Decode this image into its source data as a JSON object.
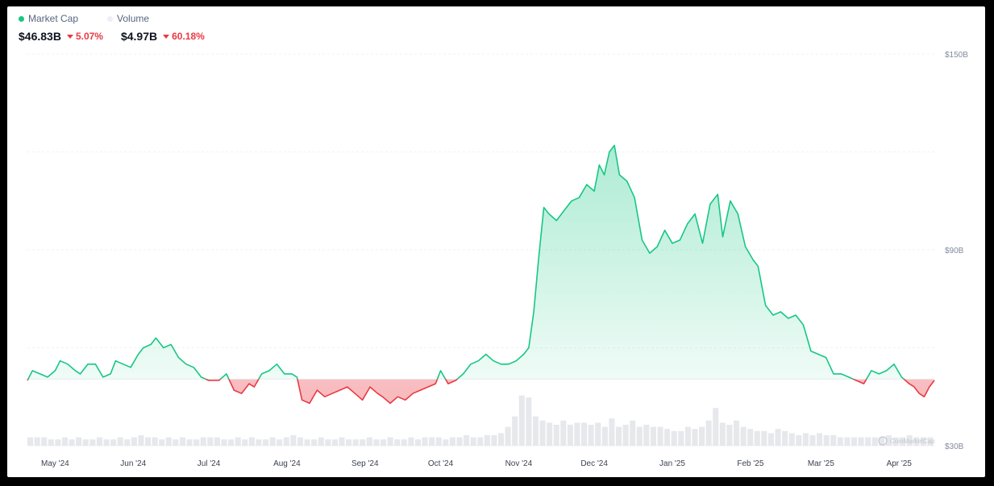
{
  "legend": {
    "market_cap_label": "Market Cap",
    "volume_label": "Volume",
    "market_cap_color": "#16c784",
    "volume_color": "#eceff3"
  },
  "stats": {
    "market_cap_value": "$46.83B",
    "market_cap_change": "5.07%",
    "volume_value": "$4.97B",
    "volume_change": "60.18%"
  },
  "watermark": "CoinMarketCap",
  "colors": {
    "up": "#16c784",
    "down": "#ea3943",
    "grid": "#eff2f5",
    "axis_text": "#808a9d",
    "volume": "#e6e8ec"
  },
  "chart_data": {
    "type": "area",
    "title": "",
    "baseline": 50.4,
    "ylim": [
      30,
      150
    ],
    "y_ticks": [
      "$30B",
      "$90B",
      "$150B"
    ],
    "y_tick_values": [
      30,
      90,
      150
    ],
    "y_gridlines": [
      30,
      60,
      90,
      120,
      150
    ],
    "x_ticks": [
      "May '24",
      "Jun '24",
      "Jul '24",
      "Aug '24",
      "Sep '24",
      "Oct '24",
      "Nov '24",
      "Dec '24",
      "Jan '25",
      "Feb '25",
      "Mar '25",
      "Apr '25"
    ],
    "x_tick_dates": [
      "2024-05-01",
      "2024-06-01",
      "2024-07-01",
      "2024-08-01",
      "2024-09-01",
      "2024-10-01",
      "2024-11-01",
      "2024-12-01",
      "2025-01-01",
      "2025-02-01",
      "2025-03-01",
      "2025-04-01"
    ],
    "series": [
      {
        "x": [
          "2024-04-20",
          "2024-04-22",
          "2024-04-25",
          "2024-04-28",
          "2024-05-01",
          "2024-05-03",
          "2024-05-06",
          "2024-05-09",
          "2024-05-11",
          "2024-05-14",
          "2024-05-17",
          "2024-05-20",
          "2024-05-23",
          "2024-05-25",
          "2024-05-28",
          "2024-05-31",
          "2024-06-03",
          "2024-06-05",
          "2024-06-08",
          "2024-06-10",
          "2024-06-13",
          "2024-06-16",
          "2024-06-19",
          "2024-06-22",
          "2024-06-25",
          "2024-06-28",
          "2024-07-01",
          "2024-07-03",
          "2024-07-05",
          "2024-07-08",
          "2024-07-11",
          "2024-07-14",
          "2024-07-17",
          "2024-07-19",
          "2024-07-22",
          "2024-07-25",
          "2024-07-28",
          "2024-07-31",
          "2024-08-03",
          "2024-08-05",
          "2024-08-07",
          "2024-08-10",
          "2024-08-13",
          "2024-08-16",
          "2024-08-19",
          "2024-08-22",
          "2024-08-25",
          "2024-08-28",
          "2024-08-31",
          "2024-09-03",
          "2024-09-06",
          "2024-09-08",
          "2024-09-11",
          "2024-09-14",
          "2024-09-17",
          "2024-09-20",
          "2024-09-23",
          "2024-09-26",
          "2024-09-29",
          "2024-10-01",
          "2024-10-04",
          "2024-10-07",
          "2024-10-10",
          "2024-10-13",
          "2024-10-16",
          "2024-10-19",
          "2024-10-22",
          "2024-10-25",
          "2024-10-28",
          "2024-10-31",
          "2024-11-03",
          "2024-11-05",
          "2024-11-07",
          "2024-11-09",
          "2024-11-11",
          "2024-11-13",
          "2024-11-16",
          "2024-11-19",
          "2024-11-22",
          "2024-11-25",
          "2024-11-28",
          "2024-12-01",
          "2024-12-03",
          "2024-12-05",
          "2024-12-07",
          "2024-12-09",
          "2024-12-11",
          "2024-12-14",
          "2024-12-17",
          "2024-12-20",
          "2024-12-23",
          "2024-12-26",
          "2024-12-29",
          "2025-01-01",
          "2025-01-04",
          "2025-01-07",
          "2025-01-10",
          "2025-01-13",
          "2025-01-16",
          "2025-01-19",
          "2025-01-21",
          "2025-01-24",
          "2025-01-27",
          "2025-01-30",
          "2025-02-02",
          "2025-02-04",
          "2025-02-07",
          "2025-02-10",
          "2025-02-13",
          "2025-02-16",
          "2025-02-19",
          "2025-02-22",
          "2025-02-25",
          "2025-02-28",
          "2025-03-03",
          "2025-03-06",
          "2025-03-09",
          "2025-03-12",
          "2025-03-15",
          "2025-03-18",
          "2025-03-21",
          "2025-03-24",
          "2025-03-27",
          "2025-03-30",
          "2025-04-02",
          "2025-04-05",
          "2025-04-07",
          "2025-04-09",
          "2025-04-11",
          "2025-04-13",
          "2025-04-15"
        ],
        "values": [
          50,
          53,
          52,
          51,
          53,
          56,
          55,
          53,
          52,
          55,
          55,
          51,
          52,
          56,
          55,
          54,
          58,
          60,
          61,
          63,
          60,
          61,
          57,
          55,
          54,
          51,
          50,
          50,
          50,
          52,
          47,
          46,
          49,
          48,
          52,
          53,
          55,
          52,
          52,
          51,
          44,
          43,
          47,
          45,
          46,
          47,
          48,
          46,
          44,
          48,
          46,
          45,
          43,
          45,
          44,
          46,
          47,
          48,
          49,
          53,
          49,
          50,
          52,
          55,
          56,
          58,
          56,
          55,
          55,
          56,
          58,
          60,
          71,
          88,
          103,
          101,
          99,
          102,
          105,
          106,
          110,
          108,
          116,
          113,
          120,
          122,
          113,
          111,
          106,
          93,
          89,
          91,
          96,
          92,
          93,
          98,
          101,
          92,
          104,
          107,
          94,
          105,
          101,
          91,
          87,
          85,
          73,
          70,
          71,
          69,
          70,
          67,
          59,
          58,
          57,
          52,
          52,
          51,
          50,
          49,
          53,
          52,
          53,
          55,
          51,
          49,
          48,
          46,
          45,
          48,
          50
        ]
      }
    ],
    "volume": {
      "x_range": [
        "2024-04-20",
        "2025-04-15"
      ],
      "values": [
        4,
        4,
        4,
        3,
        3,
        4,
        3,
        4,
        3,
        3,
        4,
        3,
        3,
        4,
        3,
        4,
        5,
        4,
        4,
        3,
        4,
        3,
        4,
        3,
        3,
        4,
        4,
        4,
        3,
        3,
        4,
        3,
        4,
        3,
        3,
        4,
        3,
        4,
        5,
        4,
        3,
        3,
        4,
        3,
        3,
        4,
        3,
        3,
        3,
        4,
        3,
        3,
        4,
        3,
        3,
        4,
        3,
        4,
        4,
        4,
        3,
        4,
        4,
        5,
        4,
        4,
        5,
        5,
        6,
        9,
        14,
        24,
        23,
        14,
        12,
        11,
        10,
        12,
        10,
        11,
        11,
        10,
        11,
        9,
        13,
        9,
        10,
        12,
        9,
        10,
        9,
        9,
        8,
        7,
        7,
        9,
        8,
        9,
        12,
        18,
        11,
        10,
        12,
        9,
        8,
        7,
        7,
        6,
        8,
        7,
        6,
        5,
        6,
        5,
        6,
        5,
        5,
        4,
        4,
        4,
        4,
        4,
        4,
        4,
        5,
        4,
        4,
        5,
        4,
        4,
        4
      ]
    }
  }
}
